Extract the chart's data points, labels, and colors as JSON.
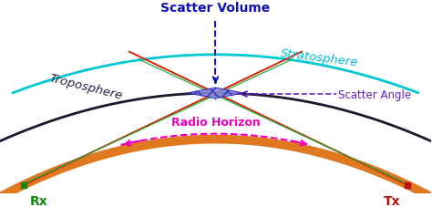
{
  "bg_color": "#ffffff",
  "earth_color": "#e07820",
  "earth_linewidth": 7,
  "tropo_color": "#1a1a2e",
  "tropo_linewidth": 2,
  "strato_color": "#00c8d4",
  "strato_linewidth": 2,
  "beam_color": "#dd2200",
  "green_line_color": "#22aa44",
  "scatter_volume_label": "Scatter Volume",
  "scatter_volume_color": "#1111bb",
  "stratosphere_label": "Stratosphere",
  "stratosphere_label_color": "#00bcd4",
  "troposphere_label": "Troposphere",
  "troposphere_label_color": "#222244",
  "scatter_angle_label": "Scatter Angle",
  "scatter_angle_color": "#6622bb",
  "radio_horizon_label": "Radio Horizon",
  "radio_horizon_color": "#ee00bb",
  "rx_label": "Rx",
  "rx_color": "#118811",
  "tx_label": "Tx",
  "tx_color": "#bb1111",
  "diamond_color": "#2222bb",
  "diamond_face": "#8888dd"
}
